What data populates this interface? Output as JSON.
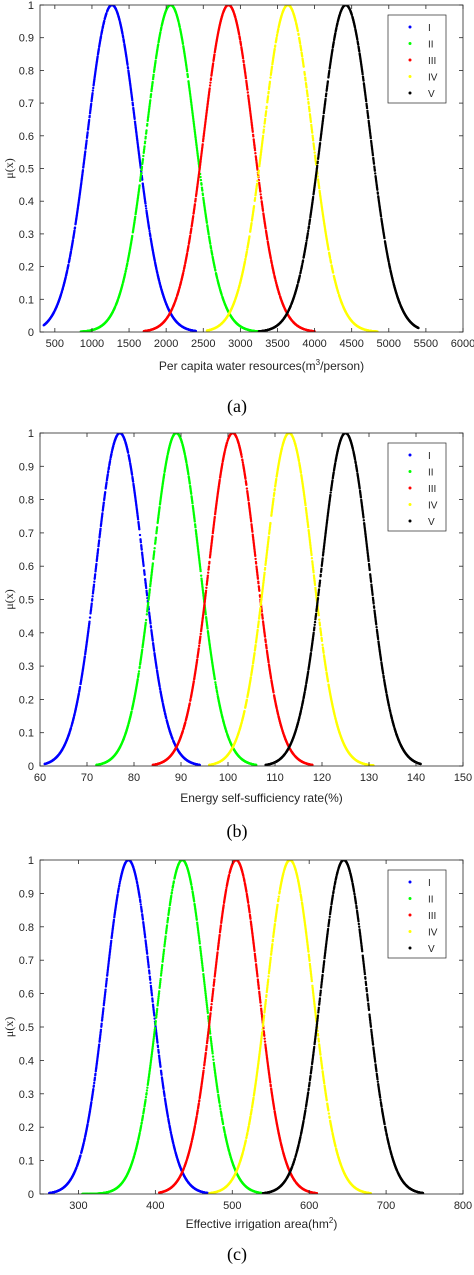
{
  "chart_data": [
    {
      "type": "scatter",
      "caption": "(a)",
      "xlabel": "Per capita water resources(m³/person)",
      "ylabel": "μ(x)",
      "xlim": [
        300,
        6000
      ],
      "ylim": [
        0,
        1
      ],
      "xticks": [
        500,
        1000,
        1500,
        2000,
        2500,
        3000,
        3500,
        4000,
        4500,
        5000,
        5500,
        6000
      ],
      "yticks": [
        0,
        0.1,
        0.2,
        0.3,
        0.4,
        0.5,
        0.6,
        0.7,
        0.8,
        0.9,
        1
      ],
      "legend_position": "top-right",
      "grid": false,
      "series": [
        {
          "name": "I",
          "color": "#0000ff",
          "center": 1270,
          "sigma": 330,
          "x_range": [
            350,
            2400
          ]
        },
        {
          "name": "II",
          "color": "#00ff00",
          "center": 2060,
          "sigma": 330,
          "x_range": [
            850,
            3250
          ]
        },
        {
          "name": "III",
          "color": "#ff0000",
          "center": 2840,
          "sigma": 330,
          "x_range": [
            1700,
            4000
          ]
        },
        {
          "name": "IV",
          "color": "#ffff00",
          "center": 3640,
          "sigma": 330,
          "x_range": [
            2550,
            4850
          ]
        },
        {
          "name": "V",
          "color": "#000000",
          "center": 4420,
          "sigma": 330,
          "x_range": [
            3250,
            5400
          ]
        }
      ]
    },
    {
      "type": "scatter",
      "caption": "(b)",
      "xlabel": "Energy self-sufficiency rate(%)",
      "ylabel": "μ(x)",
      "xlim": [
        60,
        150
      ],
      "ylim": [
        0,
        1
      ],
      "xticks": [
        60,
        70,
        80,
        90,
        100,
        110,
        120,
        130,
        140,
        150
      ],
      "yticks": [
        0,
        0.1,
        0.2,
        0.3,
        0.4,
        0.5,
        0.6,
        0.7,
        0.8,
        0.9,
        1
      ],
      "legend_position": "top-right",
      "grid": false,
      "series": [
        {
          "name": "I",
          "color": "#0000ff",
          "center": 77,
          "sigma": 5.0,
          "x_range": [
            61,
            94
          ]
        },
        {
          "name": "II",
          "color": "#00ff00",
          "center": 89,
          "sigma": 5.0,
          "x_range": [
            72,
            106
          ]
        },
        {
          "name": "III",
          "color": "#ff0000",
          "center": 101,
          "sigma": 5.0,
          "x_range": [
            84,
            118
          ]
        },
        {
          "name": "IV",
          "color": "#ffff00",
          "center": 113,
          "sigma": 5.0,
          "x_range": [
            96,
            131
          ]
        },
        {
          "name": "V",
          "color": "#000000",
          "center": 125,
          "sigma": 5.0,
          "x_range": [
            108,
            141
          ]
        }
      ]
    },
    {
      "type": "scatter",
      "caption": "(c)",
      "xlabel": "Effective irrigation area(hm²)",
      "ylabel": "μ(x)",
      "xlim": [
        250,
        800
      ],
      "ylim": [
        0,
        1
      ],
      "xticks": [
        300,
        400,
        500,
        600,
        700,
        800
      ],
      "yticks": [
        0,
        0.1,
        0.2,
        0.3,
        0.4,
        0.5,
        0.6,
        0.7,
        0.8,
        0.9,
        1
      ],
      "legend_position": "top-right",
      "grid": false,
      "series": [
        {
          "name": "I",
          "color": "#0000ff",
          "center": 365,
          "sigma": 30,
          "x_range": [
            262,
            470
          ]
        },
        {
          "name": "II",
          "color": "#00ff00",
          "center": 435,
          "sigma": 30,
          "x_range": [
            305,
            540
          ]
        },
        {
          "name": "III",
          "color": "#ff0000",
          "center": 505,
          "sigma": 30,
          "x_range": [
            405,
            610
          ]
        },
        {
          "name": "IV",
          "color": "#ffff00",
          "center": 575,
          "sigma": 30,
          "x_range": [
            470,
            680
          ]
        },
        {
          "name": "V",
          "color": "#000000",
          "center": 645,
          "sigma": 30,
          "x_range": [
            540,
            748
          ]
        }
      ]
    }
  ]
}
